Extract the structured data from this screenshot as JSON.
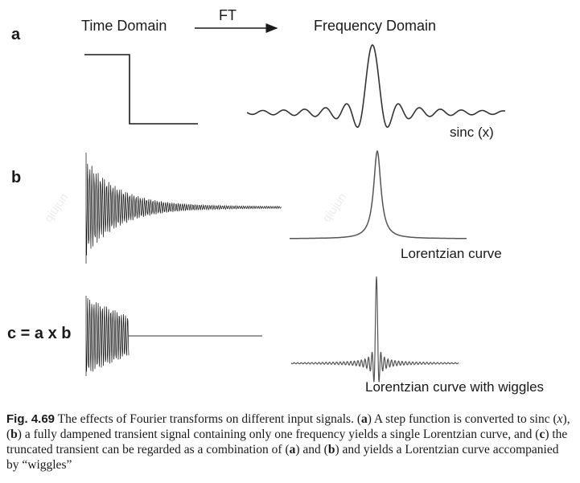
{
  "header": {
    "time_domain": "Time Domain",
    "ft": "FT",
    "frequency_domain": "Frequency Domain"
  },
  "panels": {
    "a": "a",
    "b": "b",
    "c": "c = a x b"
  },
  "curve_labels": {
    "sinc": "sinc (x)",
    "lorentzian": "Lorentzian curve",
    "lorentzian_wiggles": "Lorentzian curve  with wiggles"
  },
  "watermark": "qiujun",
  "caption": {
    "fig_label": "Fig. 4.69",
    "s1": " The effects of Fourier transforms on different input signals. (",
    "b1": "a",
    "s2": ") A step function is converted to sinc (",
    "it1": "x",
    "s3": "), (",
    "b2": "b",
    "s4": ") a fully dampened transient signal containing only one frequency yields a single Lorentzian curve, and (",
    "b3": "c",
    "s5": ") the truncated transient can be regarded as a combination of (",
    "b4": "a",
    "s6": ") and (",
    "b5": "b",
    "s7": ") and yields a Lorentzian curve accompanied by “wiggles”"
  }
}
